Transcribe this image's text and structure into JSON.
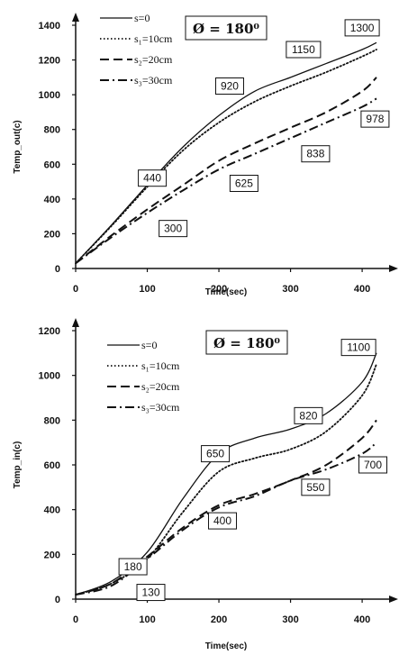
{
  "chart_data": [
    {
      "type": "line",
      "title": "Ø = 180⁰",
      "xlabel": "Time(sec)",
      "ylabel": "Temp_out(c)",
      "xlim": [
        0,
        420
      ],
      "ylim": [
        0,
        1400
      ],
      "xticks": [
        0,
        100,
        200,
        300,
        400
      ],
      "yticks": [
        0,
        200,
        400,
        600,
        800,
        1000,
        1200,
        1400
      ],
      "legend": "top-left",
      "grid": false,
      "series": [
        {
          "name": "s=0",
          "style": "solid",
          "x": [
            0,
            50,
            100,
            150,
            200,
            250,
            300,
            350,
            400,
            420
          ],
          "y": [
            30,
            250,
            480,
            700,
            880,
            1020,
            1100,
            1180,
            1260,
            1300
          ]
        },
        {
          "name": "s₁=10cm",
          "style": "dotted",
          "x": [
            0,
            50,
            100,
            150,
            200,
            250,
            300,
            350,
            400,
            420
          ],
          "y": [
            30,
            245,
            470,
            680,
            840,
            960,
            1050,
            1130,
            1220,
            1260
          ]
        },
        {
          "name": "s₂=20cm",
          "style": "dashed",
          "x": [
            0,
            50,
            100,
            150,
            200,
            250,
            300,
            350,
            400,
            420
          ],
          "y": [
            30,
            190,
            340,
            480,
            620,
            720,
            810,
            900,
            1020,
            1100
          ]
        },
        {
          "name": "s₃=30cm",
          "style": "dashdot",
          "x": [
            0,
            50,
            100,
            150,
            200,
            250,
            300,
            350,
            400,
            420
          ],
          "y": [
            30,
            180,
            320,
            450,
            570,
            660,
            750,
            840,
            930,
            978
          ]
        }
      ],
      "annotations": [
        {
          "text": "440",
          "x": 107,
          "y": 520
        },
        {
          "text": "300",
          "x": 136,
          "y": 230
        },
        {
          "text": "920",
          "x": 215,
          "y": 1050
        },
        {
          "text": "625",
          "x": 235,
          "y": 490
        },
        {
          "text": "1150",
          "x": 318,
          "y": 1260
        },
        {
          "text": "838",
          "x": 335,
          "y": 660
        },
        {
          "text": "1300",
          "x": 400,
          "y": 1385
        },
        {
          "text": "978",
          "x": 418,
          "y": 860
        }
      ]
    },
    {
      "type": "line",
      "title": "Ø = 180⁰",
      "xlabel": "Time(sec)",
      "ylabel": "Temp_in(c)",
      "xlim": [
        0,
        420
      ],
      "ylim": [
        0,
        1200
      ],
      "xticks": [
        0,
        100,
        200,
        300,
        400
      ],
      "yticks": [
        0,
        200,
        400,
        600,
        800,
        1000,
        1200
      ],
      "legend": "top-left",
      "grid": false,
      "series": [
        {
          "name": "s=0",
          "style": "solid",
          "x": [
            0,
            50,
            100,
            150,
            200,
            250,
            300,
            350,
            400,
            420
          ],
          "y": [
            20,
            80,
            210,
            450,
            650,
            720,
            760,
            830,
            970,
            1100
          ]
        },
        {
          "name": "s₁=10cm",
          "style": "dotted",
          "x": [
            0,
            50,
            100,
            150,
            200,
            250,
            300,
            350,
            400,
            420
          ],
          "y": [
            20,
            70,
            180,
            390,
            570,
            630,
            670,
            750,
            910,
            1050
          ]
        },
        {
          "name": "s₂=20cm",
          "style": "dashed",
          "x": [
            0,
            50,
            100,
            150,
            200,
            250,
            300,
            350,
            400,
            420
          ],
          "y": [
            20,
            70,
            190,
            320,
            420,
            470,
            530,
            600,
            720,
            800
          ]
        },
        {
          "name": "s₃=30cm",
          "style": "dashdot",
          "x": [
            0,
            50,
            100,
            150,
            200,
            250,
            300,
            350,
            400,
            420
          ],
          "y": [
            20,
            60,
            180,
            310,
            410,
            460,
            530,
            580,
            650,
            700
          ]
        }
      ],
      "annotations": [
        {
          "text": "650",
          "x": 195,
          "y": 650
        },
        {
          "text": "820",
          "x": 325,
          "y": 820
        },
        {
          "text": "1100",
          "x": 395,
          "y": 1125
        },
        {
          "text": "700",
          "x": 415,
          "y": 600
        },
        {
          "text": "400",
          "x": 205,
          "y": 350
        },
        {
          "text": "550",
          "x": 335,
          "y": 500
        },
        {
          "text": "180",
          "x": 80,
          "y": 145
        },
        {
          "text": "130",
          "x": 105,
          "y": 30
        }
      ]
    }
  ]
}
